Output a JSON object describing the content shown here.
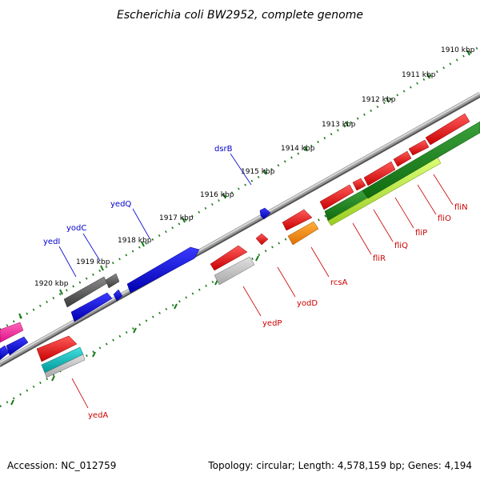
{
  "title": "Escherichia coli BW2952, complete genome",
  "footer": {
    "accession": "Accession: NC_012759",
    "summary": "Topology: circular; Length: 4,578,159 bp; Genes: 4,194"
  },
  "colors": {
    "forward_label": "#0000cc",
    "reverse_label": "#cc0000",
    "backbone": "#808080",
    "tick": "#1a7a1a"
  },
  "scale_labels": [
    "1910 kbp",
    "1911 kbp",
    "1912 kbp",
    "1913 kbp",
    "1914 kbp",
    "1915 kbp",
    "1916 kbp",
    "1917 kbp",
    "1918 kbp",
    "1919 kbp",
    "1920 kbp"
  ],
  "gene_labels": {
    "forward": [
      "dsrB",
      "yedQ",
      "yodC",
      "yedI"
    ],
    "reverse": [
      "yedA",
      "yedP",
      "yodD",
      "rcsA",
      "fliR",
      "fliQ",
      "fliP",
      "fliO",
      "fliN"
    ]
  }
}
